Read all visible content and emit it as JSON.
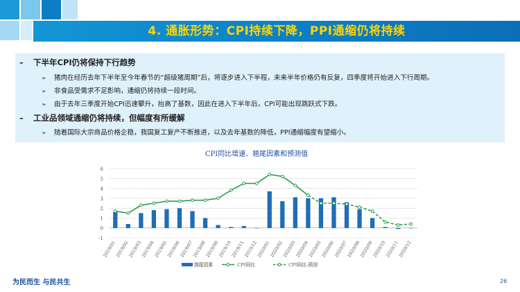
{
  "slide": {
    "title": "4. 通胀形势：CPI持续下降，PPI通缩仍将持续",
    "sections": [
      {
        "heading": "下半年CPI仍将保持下行趋势",
        "bullets": [
          "猪肉在经历去年下半年至今年春节的“超级猪周期”后，将逐步进入下半程，未来半年价格仍有反复，四季度将开始进入下行周期。",
          "非食品受需求不足影响，通缩仍将持续一段时间。",
          "由于去年三季度开始CPI迅速攀升，抬高了基数，因此在进入下半年后，CPI可能出现跳跃式下跌。"
        ]
      },
      {
        "heading": "工业品领域通缩仍将持续，但幅度有所缓解",
        "bullets": [
          "随着国际大宗商品价格企稳，我国复工复产不断推进，以及去年基数的降低，PPI通缩幅度有望缩小。"
        ]
      }
    ],
    "footer": "为民而生 与民共生",
    "page_number": "26",
    "accent_color": "#0c7fc4",
    "title_color": "#ffd400"
  },
  "chart_data": {
    "type": "bar+line",
    "title": "CPI同比增速、翘尾因素和预测值",
    "categories": [
      "2019/01",
      "2019/02",
      "2019/03",
      "2019/04",
      "2019/05",
      "2019/06",
      "2019/07",
      "2019/08",
      "2019/09",
      "2019/10",
      "2019/11",
      "2019/12",
      "2020/01",
      "2020/02",
      "2020/03",
      "2020/04",
      "2020/05",
      "2020/06",
      "2020/07",
      "2020/08",
      "2020/09",
      "2020/10",
      "2020/11",
      "2020/12"
    ],
    "ylim": [
      -1,
      6
    ],
    "yticks": [
      "-1",
      "0",
      "1",
      "2",
      "3",
      "4",
      "5",
      "6"
    ],
    "series": [
      {
        "name": "翘尾因素",
        "type": "bar",
        "color": "#1f6db5",
        "values": [
          1.6,
          0.4,
          1.5,
          1.8,
          1.9,
          2.0,
          1.7,
          1.0,
          0.3,
          0.1,
          0.2,
          0.0,
          3.7,
          2.7,
          3.1,
          3.0,
          3.0,
          3.1,
          2.6,
          1.9,
          1.0,
          0.1,
          -0.1,
          0.0
        ]
      },
      {
        "name": "CPI同比",
        "type": "line",
        "color": "#2a9d4a",
        "values": [
          1.7,
          1.5,
          2.3,
          2.5,
          2.7,
          2.7,
          2.8,
          2.8,
          3.0,
          3.8,
          4.5,
          4.5,
          5.4,
          5.2,
          4.3,
          3.3,
          null,
          null,
          null,
          null,
          null,
          null,
          null,
          null
        ]
      },
      {
        "name": "CPI同比-预测",
        "type": "line-dashed",
        "color": "#2a9d4a",
        "values": [
          null,
          null,
          null,
          null,
          null,
          null,
          null,
          null,
          null,
          null,
          null,
          null,
          null,
          null,
          null,
          3.3,
          2.5,
          2.5,
          2.4,
          2.1,
          1.7,
          0.6,
          0.3,
          0.4
        ]
      }
    ]
  }
}
